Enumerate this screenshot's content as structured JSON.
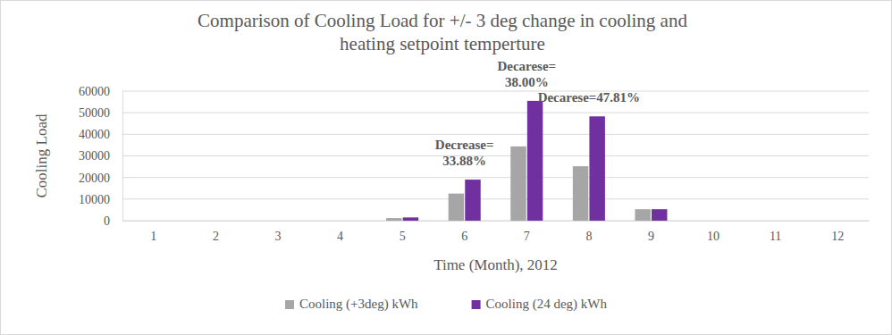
{
  "chart_data": {
    "type": "bar",
    "title": [
      "Comparison of Cooling Load for +/- 3 deg change in cooling and",
      "heating setpoint temperture"
    ],
    "x_label": "Time (Month), 2012",
    "y_label": "Cooling Load",
    "categories": [
      "1",
      "2",
      "3",
      "4",
      "5",
      "6",
      "7",
      "8",
      "9",
      "10",
      "11",
      "12"
    ],
    "series": [
      {
        "name": "Cooling (+3deg) kWh",
        "color": "#a6a6a6",
        "values": [
          0,
          0,
          0,
          0,
          1200,
          12560,
          34400,
          25200,
          5300,
          0,
          0,
          0
        ]
      },
      {
        "name": "Cooling (24 deg) kWh",
        "color": "#7030a0",
        "values": [
          0,
          0,
          0,
          0,
          1500,
          19000,
          55500,
          48300,
          5300,
          0,
          0,
          0
        ]
      }
    ],
    "ylim": [
      0,
      60000
    ],
    "yticks": [
      0,
      10000,
      20000,
      30000,
      40000,
      50000,
      60000
    ],
    "grid": true,
    "legend": "bottom",
    "annotations": [
      {
        "x": "6",
        "text": [
          "Decrease=",
          "33.88%"
        ]
      },
      {
        "x": "7",
        "text": [
          "Decarese=",
          "38.00%"
        ]
      },
      {
        "x": "8",
        "text": [
          "Decarese=47.81%"
        ]
      }
    ]
  }
}
